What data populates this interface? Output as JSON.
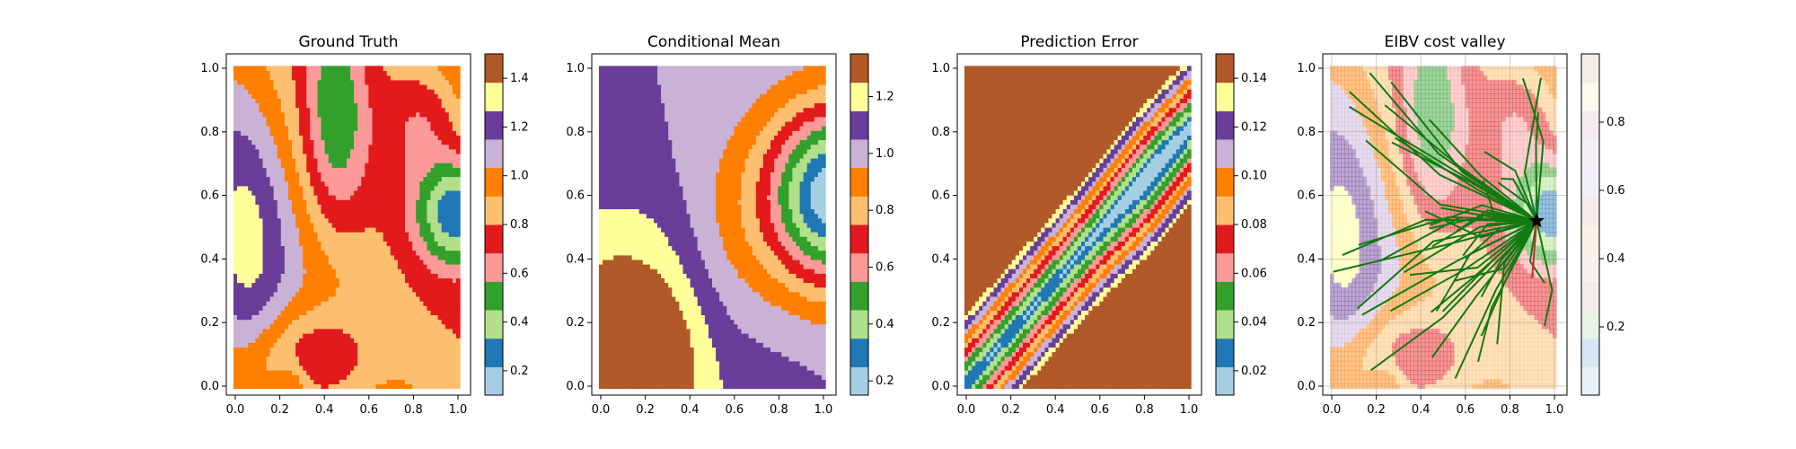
{
  "chart_data": [
    {
      "type": "heatmap",
      "title": "Ground Truth",
      "xlim": [
        0,
        1
      ],
      "ylim": [
        0,
        1
      ],
      "xticks": [
        "0.0",
        "0.2",
        "0.4",
        "0.6",
        "0.8",
        "1.0"
      ],
      "yticks": [
        "0.0",
        "0.2",
        "0.4",
        "0.6",
        "0.8",
        "1.0"
      ],
      "colorbar": {
        "range": [
          0.1,
          1.5
        ],
        "ticks": [
          "0.2",
          "0.4",
          "0.6",
          "0.8",
          "1.0",
          "1.2",
          "1.4"
        ]
      }
    },
    {
      "type": "heatmap",
      "title": "Conditional Mean",
      "xlim": [
        0,
        1
      ],
      "ylim": [
        0,
        1
      ],
      "xticks": [
        "0.0",
        "0.2",
        "0.4",
        "0.6",
        "0.8",
        "1.0"
      ],
      "yticks": [
        "0.0",
        "0.2",
        "0.4",
        "0.6",
        "0.8",
        "1.0"
      ],
      "colorbar": {
        "range": [
          0.15,
          1.35
        ],
        "ticks": [
          "0.2",
          "0.4",
          "0.6",
          "0.8",
          "1.0",
          "1.2"
        ]
      }
    },
    {
      "type": "heatmap",
      "title": "Prediction Error",
      "xlim": [
        0,
        1
      ],
      "ylim": [
        0,
        1
      ],
      "xticks": [
        "0.0",
        "0.2",
        "0.4",
        "0.6",
        "0.8",
        "1.0"
      ],
      "yticks": [
        "0.0",
        "0.2",
        "0.4",
        "0.6",
        "0.8",
        "1.0"
      ],
      "colorbar": {
        "range": [
          0.01,
          0.15
        ],
        "ticks": [
          "0.02",
          "0.04",
          "0.06",
          "0.08",
          "0.10",
          "0.12",
          "0.14"
        ]
      }
    },
    {
      "type": "heatmap",
      "title": "EIBV cost valley",
      "xlim": [
        0,
        1
      ],
      "ylim": [
        0,
        1
      ],
      "xticks": [
        "0.0",
        "0.2",
        "0.4",
        "0.6",
        "0.8",
        "1.0"
      ],
      "yticks": [
        "0.0",
        "0.2",
        "0.4",
        "0.6",
        "0.8",
        "1.0"
      ],
      "colorbar": {
        "range": [
          0.0,
          1.0
        ],
        "ticks": [
          "0.2",
          "0.4",
          "0.6",
          "0.8"
        ]
      },
      "current_location": [
        0.92,
        0.52
      ],
      "path_color": "#117a11",
      "marker": "star"
    }
  ],
  "palette": [
    "#a6cee3",
    "#1f78b4",
    "#b2df8a",
    "#33a02c",
    "#fb9a99",
    "#e31a1c",
    "#fdbf6f",
    "#ff7f00",
    "#cab2d6",
    "#6a3d9a",
    "#ffff99",
    "#b15928"
  ]
}
